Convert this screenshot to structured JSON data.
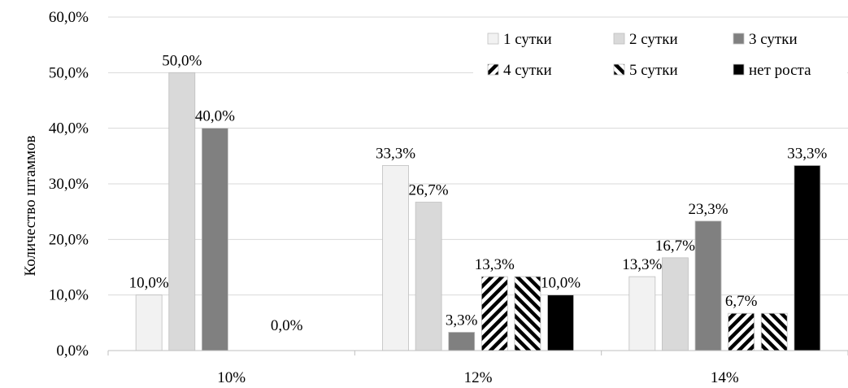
{
  "chart_data": {
    "type": "bar",
    "title": "",
    "xlabel": "",
    "ylabel": "Количество штаммов",
    "ylim": [
      0,
      60
    ],
    "yticks": [
      "0,0%",
      "10,0%",
      "20,0%",
      "30,0%",
      "40,0%",
      "50,0%",
      "60,0%"
    ],
    "ytick_values": [
      0,
      10,
      20,
      30,
      40,
      50,
      60
    ],
    "grid": true,
    "legend_position": "top-right",
    "categories": [
      "10%",
      "12%",
      "14%"
    ],
    "series": [
      {
        "name": "1 сутки",
        "values": [
          10.0,
          33.3,
          13.3
        ],
        "labels": [
          "10,0%",
          "33,3%",
          "13,3%"
        ],
        "color": "#f2f2f2",
        "pattern": "solid"
      },
      {
        "name": "2 сутки",
        "values": [
          50.0,
          26.7,
          16.7
        ],
        "labels": [
          "50,0%",
          "26,7%",
          "16,7%"
        ],
        "color": "#d9d9d9",
        "pattern": "solid"
      },
      {
        "name": "3 сутки",
        "values": [
          40.0,
          3.3,
          23.3
        ],
        "labels": [
          "40,0%",
          "3,3%",
          "23,3%"
        ],
        "color": "#808080",
        "pattern": "solid"
      },
      {
        "name": "4 сутки",
        "values": [
          0,
          13.3,
          6.7
        ],
        "labels": [
          "",
          "13,3%",
          "6,7%"
        ],
        "color": "#000000",
        "pattern": "stripes-down"
      },
      {
        "name": "5 сутки",
        "values": [
          0,
          13.3,
          6.7
        ],
        "labels": [
          "",
          "",
          ""
        ],
        "color": "#000000",
        "pattern": "stripes-up"
      },
      {
        "name": "нет роста",
        "values": [
          0,
          10.0,
          33.3
        ],
        "labels": [
          "",
          "10,0%",
          "33,3%"
        ],
        "color": "#000000",
        "pattern": "solid"
      }
    ],
    "extra_labels": [
      {
        "category": "10%",
        "text": "0,0%"
      }
    ]
  }
}
